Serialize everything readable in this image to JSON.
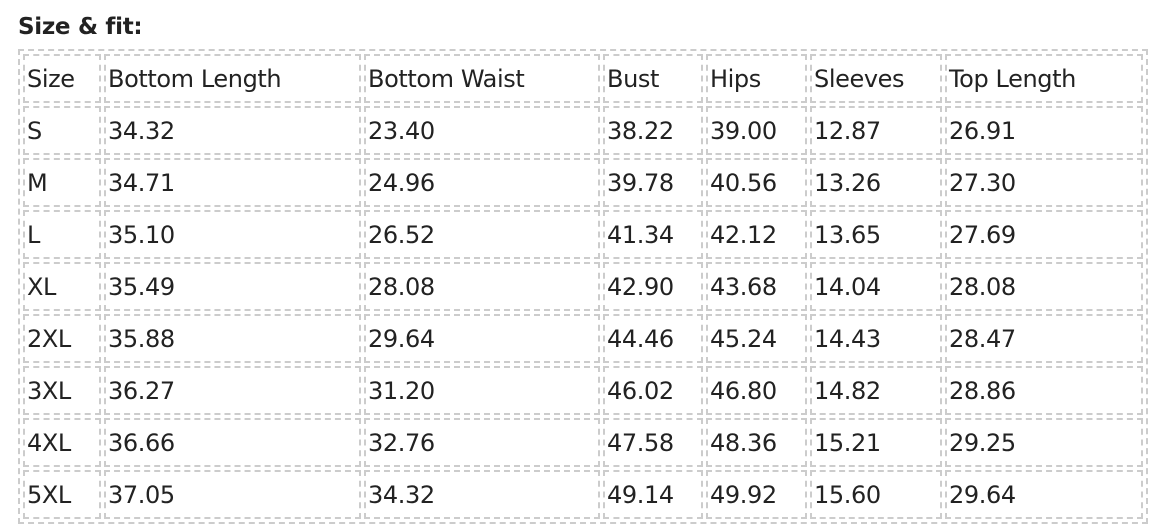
{
  "title": "Size & fit:",
  "table": {
    "headers": [
      "Size",
      "Bottom Length",
      "Bottom Waist",
      "Bust",
      "Hips",
      "Sleeves",
      "Top Length"
    ],
    "rows": [
      [
        "S",
        "34.32",
        "23.40",
        "38.22",
        "39.00",
        "12.87",
        "26.91"
      ],
      [
        "M",
        "34.71",
        "24.96",
        "39.78",
        "40.56",
        "13.26",
        "27.30"
      ],
      [
        "L",
        "35.10",
        "26.52",
        "41.34",
        "42.12",
        "13.65",
        "27.69"
      ],
      [
        "XL",
        "35.49",
        "28.08",
        "42.90",
        "43.68",
        "14.04",
        "28.08"
      ],
      [
        "2XL",
        "35.88",
        "29.64",
        "44.46",
        "45.24",
        "14.43",
        "28.47"
      ],
      [
        "3XL",
        "36.27",
        "31.20",
        "46.02",
        "46.80",
        "14.82",
        "28.86"
      ],
      [
        "4XL",
        "36.66",
        "32.76",
        "47.58",
        "48.36",
        "15.21",
        "29.25"
      ],
      [
        "5XL",
        "37.05",
        "34.32",
        "49.14",
        "49.92",
        "15.60",
        "29.64"
      ]
    ]
  }
}
